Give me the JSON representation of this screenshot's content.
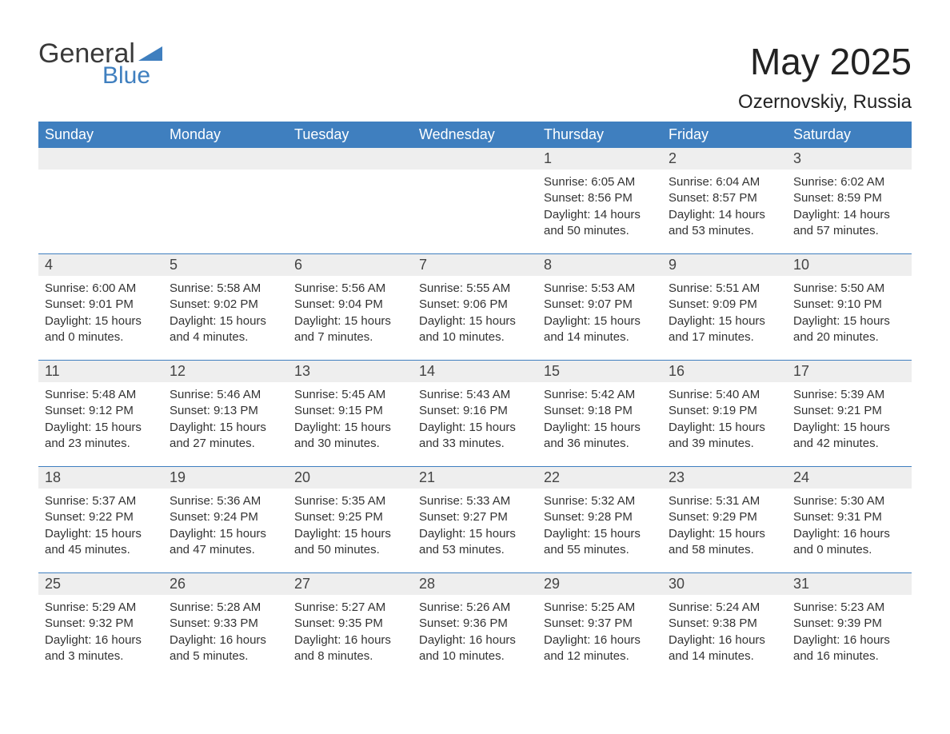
{
  "logo": {
    "general": "General",
    "blue": "Blue",
    "tri_color": "#3f7fbf"
  },
  "title": "May 2025",
  "location": "Ozernovskiy, Russia",
  "colors": {
    "header_bg": "#3f7fbf",
    "header_text": "#ffffff",
    "daynum_bg": "#eeeeee",
    "week_border": "#3f7fbf",
    "body_text": "#333333",
    "page_bg": "#ffffff"
  },
  "weekdays": [
    "Sunday",
    "Monday",
    "Tuesday",
    "Wednesday",
    "Thursday",
    "Friday",
    "Saturday"
  ],
  "weeks": [
    [
      {
        "day": "",
        "sunrise": "",
        "sunset": "",
        "daylight": ""
      },
      {
        "day": "",
        "sunrise": "",
        "sunset": "",
        "daylight": ""
      },
      {
        "day": "",
        "sunrise": "",
        "sunset": "",
        "daylight": ""
      },
      {
        "day": "",
        "sunrise": "",
        "sunset": "",
        "daylight": ""
      },
      {
        "day": "1",
        "sunrise": "Sunrise: 6:05 AM",
        "sunset": "Sunset: 8:56 PM",
        "daylight": "Daylight: 14 hours and 50 minutes."
      },
      {
        "day": "2",
        "sunrise": "Sunrise: 6:04 AM",
        "sunset": "Sunset: 8:57 PM",
        "daylight": "Daylight: 14 hours and 53 minutes."
      },
      {
        "day": "3",
        "sunrise": "Sunrise: 6:02 AM",
        "sunset": "Sunset: 8:59 PM",
        "daylight": "Daylight: 14 hours and 57 minutes."
      }
    ],
    [
      {
        "day": "4",
        "sunrise": "Sunrise: 6:00 AM",
        "sunset": "Sunset: 9:01 PM",
        "daylight": "Daylight: 15 hours and 0 minutes."
      },
      {
        "day": "5",
        "sunrise": "Sunrise: 5:58 AM",
        "sunset": "Sunset: 9:02 PM",
        "daylight": "Daylight: 15 hours and 4 minutes."
      },
      {
        "day": "6",
        "sunrise": "Sunrise: 5:56 AM",
        "sunset": "Sunset: 9:04 PM",
        "daylight": "Daylight: 15 hours and 7 minutes."
      },
      {
        "day": "7",
        "sunrise": "Sunrise: 5:55 AM",
        "sunset": "Sunset: 9:06 PM",
        "daylight": "Daylight: 15 hours and 10 minutes."
      },
      {
        "day": "8",
        "sunrise": "Sunrise: 5:53 AM",
        "sunset": "Sunset: 9:07 PM",
        "daylight": "Daylight: 15 hours and 14 minutes."
      },
      {
        "day": "9",
        "sunrise": "Sunrise: 5:51 AM",
        "sunset": "Sunset: 9:09 PM",
        "daylight": "Daylight: 15 hours and 17 minutes."
      },
      {
        "day": "10",
        "sunrise": "Sunrise: 5:50 AM",
        "sunset": "Sunset: 9:10 PM",
        "daylight": "Daylight: 15 hours and 20 minutes."
      }
    ],
    [
      {
        "day": "11",
        "sunrise": "Sunrise: 5:48 AM",
        "sunset": "Sunset: 9:12 PM",
        "daylight": "Daylight: 15 hours and 23 minutes."
      },
      {
        "day": "12",
        "sunrise": "Sunrise: 5:46 AM",
        "sunset": "Sunset: 9:13 PM",
        "daylight": "Daylight: 15 hours and 27 minutes."
      },
      {
        "day": "13",
        "sunrise": "Sunrise: 5:45 AM",
        "sunset": "Sunset: 9:15 PM",
        "daylight": "Daylight: 15 hours and 30 minutes."
      },
      {
        "day": "14",
        "sunrise": "Sunrise: 5:43 AM",
        "sunset": "Sunset: 9:16 PM",
        "daylight": "Daylight: 15 hours and 33 minutes."
      },
      {
        "day": "15",
        "sunrise": "Sunrise: 5:42 AM",
        "sunset": "Sunset: 9:18 PM",
        "daylight": "Daylight: 15 hours and 36 minutes."
      },
      {
        "day": "16",
        "sunrise": "Sunrise: 5:40 AM",
        "sunset": "Sunset: 9:19 PM",
        "daylight": "Daylight: 15 hours and 39 minutes."
      },
      {
        "day": "17",
        "sunrise": "Sunrise: 5:39 AM",
        "sunset": "Sunset: 9:21 PM",
        "daylight": "Daylight: 15 hours and 42 minutes."
      }
    ],
    [
      {
        "day": "18",
        "sunrise": "Sunrise: 5:37 AM",
        "sunset": "Sunset: 9:22 PM",
        "daylight": "Daylight: 15 hours and 45 minutes."
      },
      {
        "day": "19",
        "sunrise": "Sunrise: 5:36 AM",
        "sunset": "Sunset: 9:24 PM",
        "daylight": "Daylight: 15 hours and 47 minutes."
      },
      {
        "day": "20",
        "sunrise": "Sunrise: 5:35 AM",
        "sunset": "Sunset: 9:25 PM",
        "daylight": "Daylight: 15 hours and 50 minutes."
      },
      {
        "day": "21",
        "sunrise": "Sunrise: 5:33 AM",
        "sunset": "Sunset: 9:27 PM",
        "daylight": "Daylight: 15 hours and 53 minutes."
      },
      {
        "day": "22",
        "sunrise": "Sunrise: 5:32 AM",
        "sunset": "Sunset: 9:28 PM",
        "daylight": "Daylight: 15 hours and 55 minutes."
      },
      {
        "day": "23",
        "sunrise": "Sunrise: 5:31 AM",
        "sunset": "Sunset: 9:29 PM",
        "daylight": "Daylight: 15 hours and 58 minutes."
      },
      {
        "day": "24",
        "sunrise": "Sunrise: 5:30 AM",
        "sunset": "Sunset: 9:31 PM",
        "daylight": "Daylight: 16 hours and 0 minutes."
      }
    ],
    [
      {
        "day": "25",
        "sunrise": "Sunrise: 5:29 AM",
        "sunset": "Sunset: 9:32 PM",
        "daylight": "Daylight: 16 hours and 3 minutes."
      },
      {
        "day": "26",
        "sunrise": "Sunrise: 5:28 AM",
        "sunset": "Sunset: 9:33 PM",
        "daylight": "Daylight: 16 hours and 5 minutes."
      },
      {
        "day": "27",
        "sunrise": "Sunrise: 5:27 AM",
        "sunset": "Sunset: 9:35 PM",
        "daylight": "Daylight: 16 hours and 8 minutes."
      },
      {
        "day": "28",
        "sunrise": "Sunrise: 5:26 AM",
        "sunset": "Sunset: 9:36 PM",
        "daylight": "Daylight: 16 hours and 10 minutes."
      },
      {
        "day": "29",
        "sunrise": "Sunrise: 5:25 AM",
        "sunset": "Sunset: 9:37 PM",
        "daylight": "Daylight: 16 hours and 12 minutes."
      },
      {
        "day": "30",
        "sunrise": "Sunrise: 5:24 AM",
        "sunset": "Sunset: 9:38 PM",
        "daylight": "Daylight: 16 hours and 14 minutes."
      },
      {
        "day": "31",
        "sunrise": "Sunrise: 5:23 AM",
        "sunset": "Sunset: 9:39 PM",
        "daylight": "Daylight: 16 hours and 16 minutes."
      }
    ]
  ]
}
